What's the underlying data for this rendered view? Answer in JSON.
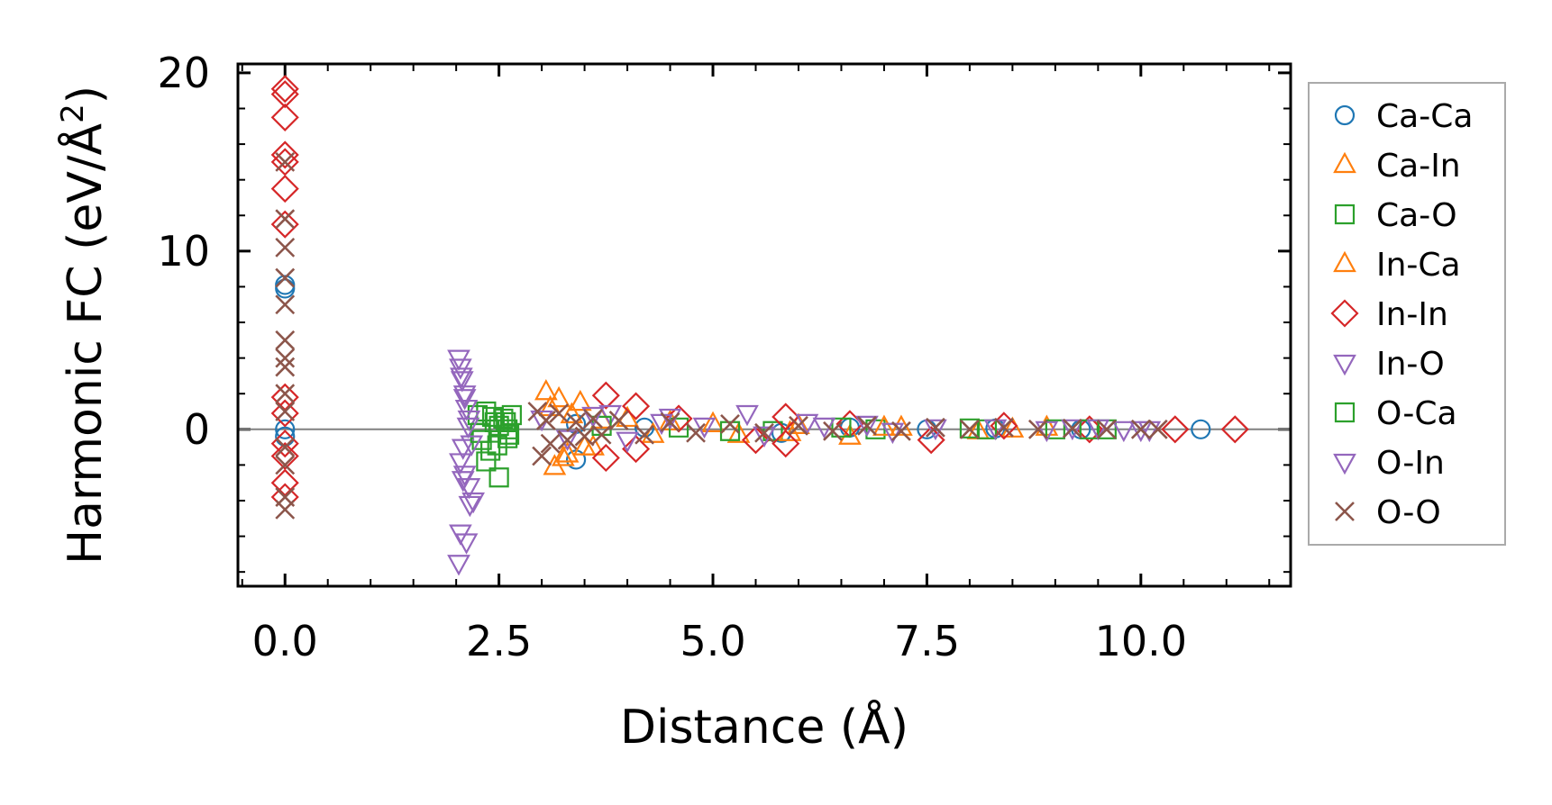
{
  "chart_data": {
    "type": "scatter",
    "xlabel": "Distance (Å)",
    "ylabel": "Harmonic FC (eV/Å",
    "ylabel_sup": "2",
    "ylabel_close": ")",
    "xlim": [
      -0.55,
      11.75
    ],
    "ylim": [
      -8.8,
      20.5
    ],
    "xticks": [
      0.0,
      2.5,
      5.0,
      7.5,
      10.0
    ],
    "xtick_labels": [
      "0.0",
      "2.5",
      "5.0",
      "7.5",
      "10.0"
    ],
    "yticks": [
      0,
      10,
      20
    ],
    "ytick_labels": [
      "0",
      "10",
      "20"
    ],
    "zero_line": true,
    "grid": false,
    "legend_position": "right",
    "series": [
      {
        "name": "Ca-Ca",
        "marker": "circle",
        "color": "#1f77b4",
        "x": [
          0.0,
          0.0,
          0.0,
          0.0,
          3.4,
          3.4,
          4.2,
          5.8,
          6.6,
          7.5,
          8.3,
          9.3,
          10.7
        ],
        "y": [
          8.1,
          7.9,
          0.0,
          -0.4,
          -1.7,
          0.3,
          0.1,
          -0.2,
          0.1,
          0.0,
          0.05,
          0.0,
          0.0
        ]
      },
      {
        "name": "Ca-In",
        "marker": "triangle-up",
        "color": "#ff7f0e",
        "x": [
          3.05,
          3.15,
          3.2,
          3.3,
          3.45,
          3.6,
          4.0,
          4.5,
          5.3,
          6.0,
          6.6,
          7.2,
          8.1,
          8.9
        ],
        "y": [
          2.1,
          -2.1,
          1.7,
          -1.4,
          1.5,
          -1.0,
          0.6,
          0.4,
          -0.3,
          0.2,
          -0.4,
          0.1,
          -0.1,
          0.1
        ]
      },
      {
        "name": "Ca-O",
        "marker": "square",
        "color": "#2ca02c",
        "x": [
          2.25,
          2.3,
          2.35,
          2.4,
          2.45,
          2.5,
          2.55,
          2.6,
          2.65,
          2.35,
          2.5,
          2.6,
          4.6,
          5.7,
          6.9,
          8.0,
          9.0,
          9.6
        ],
        "y": [
          0.8,
          -0.6,
          1.0,
          -1.2,
          0.4,
          -2.7,
          0.6,
          -0.5,
          0.8,
          -1.8,
          0.2,
          0.0,
          0.1,
          -0.1,
          0.0,
          0.05,
          0.0,
          0.0
        ]
      },
      {
        "name": "In-Ca",
        "marker": "triangle-up",
        "color": "#ff7f0e",
        "x": [
          3.1,
          3.25,
          3.35,
          3.5,
          3.7,
          4.3,
          5.0,
          5.9,
          7.0,
          8.5
        ],
        "y": [
          1.2,
          -1.6,
          0.8,
          -1.0,
          0.5,
          -0.3,
          0.3,
          -0.2,
          0.1,
          0.0
        ]
      },
      {
        "name": "In-In",
        "marker": "diamond",
        "color": "#d62728",
        "x": [
          0.0,
          0.0,
          0.0,
          0.0,
          0.0,
          0.0,
          0.0,
          0.0,
          0.0,
          0.0,
          0.0,
          0.0,
          0.0,
          3.75,
          3.75,
          4.1,
          4.1,
          4.6,
          5.5,
          5.85,
          5.85,
          6.6,
          7.55,
          8.4,
          9.4,
          10.4,
          11.1
        ],
        "y": [
          19.1,
          18.8,
          17.5,
          15.4,
          15.0,
          13.5,
          11.5,
          1.8,
          0.9,
          -0.8,
          -1.5,
          -3.0,
          -3.8,
          1.9,
          -1.6,
          1.3,
          -1.1,
          0.6,
          -0.6,
          0.7,
          -0.8,
          0.3,
          -0.6,
          0.2,
          0.0,
          0.0,
          0.0
        ]
      },
      {
        "name": "In-O",
        "marker": "triangle-down",
        "color": "#9467bd",
        "x": [
          2.03,
          2.05,
          2.07,
          2.1,
          2.12,
          2.15,
          2.08,
          2.05,
          2.1,
          2.15,
          2.2,
          2.05,
          2.12,
          2.03,
          3.8,
          4.5,
          5.4,
          6.1,
          6.8,
          7.6,
          9.2,
          9.8,
          10.0
        ],
        "y": [
          4.0,
          3.5,
          2.8,
          2.0,
          1.2,
          0.6,
          -1.0,
          -1.8,
          -2.5,
          -3.2,
          -4.0,
          -5.8,
          -6.3,
          -7.5,
          0.9,
          0.7,
          0.9,
          0.4,
          0.3,
          0.1,
          0.1,
          0.0,
          0.0
        ]
      },
      {
        "name": "O-Ca",
        "marker": "square",
        "color": "#2ca02c",
        "x": [
          2.28,
          2.42,
          2.48,
          2.58,
          2.62,
          3.7,
          5.2,
          6.5,
          8.2,
          9.4
        ],
        "y": [
          -0.2,
          0.7,
          -0.9,
          0.4,
          -0.3,
          0.2,
          -0.1,
          0.1,
          0.0,
          0.0
        ]
      },
      {
        "name": "O-In",
        "marker": "triangle-down",
        "color": "#9467bd",
        "x": [
          2.06,
          2.1,
          2.14,
          2.18,
          2.08,
          2.16,
          3.0,
          3.3,
          3.6,
          4.0,
          4.4,
          4.9,
          5.6,
          6.3,
          7.1,
          8.3,
          8.9,
          9.5,
          10.1
        ],
        "y": [
          3.0,
          1.8,
          0.2,
          -0.8,
          -2.8,
          -4.2,
          0.6,
          -0.5,
          0.8,
          -0.6,
          0.4,
          0.2,
          -0.3,
          0.2,
          -0.1,
          0.1,
          0.0,
          0.1,
          0.0
        ]
      },
      {
        "name": "O-O",
        "marker": "x",
        "color": "#8c564b",
        "x": [
          0.0,
          0.0,
          0.0,
          0.0,
          0.0,
          0.0,
          0.0,
          0.0,
          0.0,
          0.0,
          0.0,
          0.0,
          0.0,
          0.0,
          2.95,
          3.0,
          3.05,
          3.1,
          3.2,
          3.3,
          3.4,
          3.5,
          3.6,
          3.7,
          3.9,
          4.2,
          4.5,
          4.8,
          5.2,
          5.6,
          6.0,
          6.4,
          6.8,
          7.2,
          7.6,
          8.0,
          8.4,
          8.8,
          9.2,
          9.6,
          10.0,
          10.2
        ],
        "y": [
          15.0,
          11.8,
          10.2,
          8.5,
          7.0,
          5.0,
          4.0,
          3.5,
          2.0,
          1.0,
          -1.0,
          -2.0,
          -3.8,
          -4.5,
          1.0,
          -1.5,
          0.5,
          -0.8,
          0.9,
          -0.6,
          0.4,
          -0.4,
          0.6,
          -0.3,
          0.5,
          -0.3,
          0.4,
          -0.2,
          0.3,
          -0.2,
          0.2,
          -0.1,
          0.2,
          -0.1,
          0.1,
          0.0,
          0.1,
          0.0,
          0.05,
          0.0,
          0.0,
          0.0
        ]
      }
    ]
  }
}
